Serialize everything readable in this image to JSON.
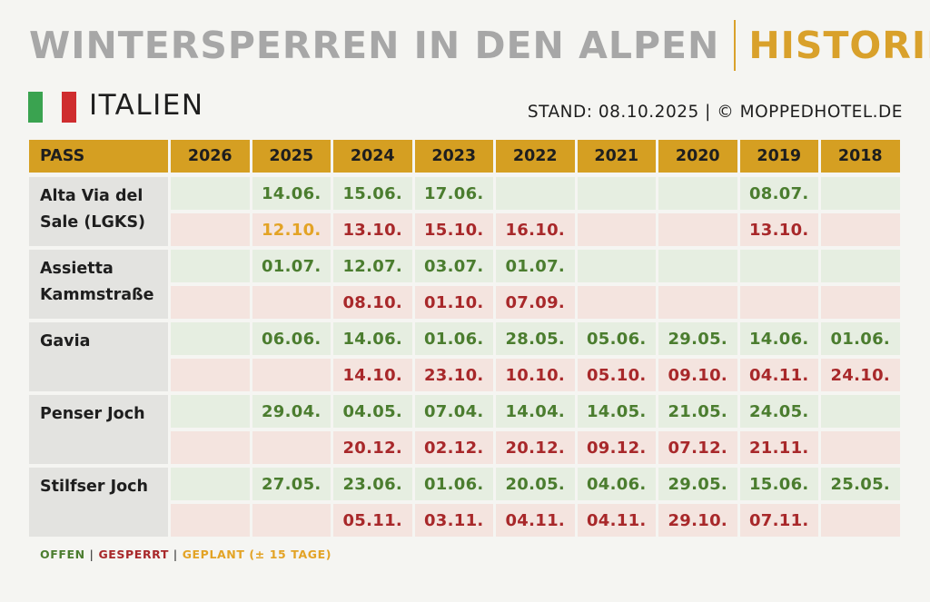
{
  "header": {
    "title": "WINTERSPERREN IN DEN ALPEN",
    "separator": "|",
    "subtitle": "HISTORIE",
    "accent_color": "#d9a12b"
  },
  "country": {
    "name": "ITALIEN",
    "flag_colors": [
      "#3aa350",
      "#f5f5f2",
      "#cf2d2f"
    ]
  },
  "stand": "STAND: 08.10.2025 | © MOPPEDHOTEL.DE",
  "table": {
    "pass_header": "PASS",
    "years": [
      "2026",
      "2025",
      "2024",
      "2023",
      "2022",
      "2021",
      "2020",
      "2019",
      "2018"
    ],
    "passes": [
      {
        "name": "Alta Via del Sale (LGKS)",
        "open": [
          "",
          "14.06.",
          "15.06.",
          "17.06.",
          "",
          "",
          "",
          "08.07.",
          ""
        ],
        "closed": [
          "",
          "12.10.",
          "13.10.",
          "15.10.",
          "16.10.",
          "",
          "",
          "13.10.",
          ""
        ],
        "closed_planned": [
          false,
          true,
          false,
          false,
          false,
          false,
          false,
          false,
          false
        ]
      },
      {
        "name": "Assietta Kammstraße",
        "open": [
          "",
          "01.07.",
          "12.07.",
          "03.07.",
          "01.07.",
          "",
          "",
          "",
          ""
        ],
        "closed": [
          "",
          "",
          "08.10.",
          "01.10.",
          "07.09.",
          "",
          "",
          "",
          ""
        ],
        "closed_planned": [
          false,
          false,
          false,
          false,
          false,
          false,
          false,
          false,
          false
        ]
      },
      {
        "name": "Gavia",
        "open": [
          "",
          "06.06.",
          "14.06.",
          "01.06.",
          "28.05.",
          "05.06.",
          "29.05.",
          "14.06.",
          "01.06."
        ],
        "closed": [
          "",
          "",
          "14.10.",
          "23.10.",
          "10.10.",
          "05.10.",
          "09.10.",
          "04.11.",
          "24.10."
        ],
        "closed_planned": [
          false,
          false,
          false,
          false,
          false,
          false,
          false,
          false,
          false
        ]
      },
      {
        "name": "Penser Joch",
        "open": [
          "",
          "29.04.",
          "04.05.",
          "07.04.",
          "14.04.",
          "14.05.",
          "21.05.",
          "24.05.",
          ""
        ],
        "closed": [
          "",
          "",
          "20.12.",
          "02.12.",
          "20.12.",
          "09.12.",
          "07.12.",
          "21.11.",
          ""
        ],
        "closed_planned": [
          false,
          false,
          false,
          false,
          false,
          false,
          false,
          false,
          false
        ]
      },
      {
        "name": "Stilfser Joch",
        "open": [
          "",
          "27.05.",
          "23.06.",
          "01.06.",
          "20.05.",
          "04.06.",
          "29.05.",
          "15.06.",
          "25.05."
        ],
        "closed": [
          "",
          "",
          "05.11.",
          "03.11.",
          "04.11.",
          "04.11.",
          "29.10.",
          "07.11.",
          ""
        ],
        "closed_planned": [
          false,
          false,
          false,
          false,
          false,
          false,
          false,
          false,
          false
        ]
      }
    ]
  },
  "legend": {
    "open": "OFFEN",
    "closed": "GESPERRT",
    "planned": "GEPLANT (± 15 TAGE)",
    "separator": "|",
    "colors": {
      "open": "#4b7d2f",
      "closed": "#a8282a",
      "planned": "#e3a325"
    }
  }
}
